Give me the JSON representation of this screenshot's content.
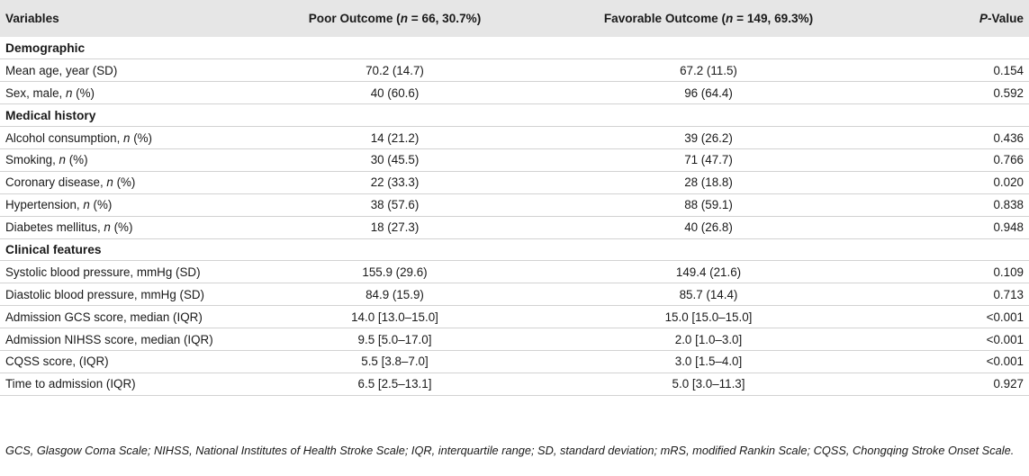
{
  "header": {
    "variables": "Variables",
    "poor_prefix": "Poor Outcome (",
    "poor_n": "n",
    "poor_suffix": " = 66, 30.7%)",
    "fav_prefix": "Favorable Outcome (",
    "fav_n": "n",
    "fav_suffix": " = 149, 69.3%)",
    "p_italic": "P",
    "p_rest": "-Value"
  },
  "rows": [
    {
      "type": "section",
      "label": "Demographic"
    },
    {
      "type": "data",
      "label": "Mean age, year (SD)",
      "poor": "70.2 (14.7)",
      "fav": "67.2 (11.5)",
      "p": "0.154"
    },
    {
      "type": "data",
      "label_pre": "Sex, male, ",
      "label_ital": "n",
      "label_post": " (%)",
      "poor": "40 (60.6)",
      "fav": "96 (64.4)",
      "p": "0.592"
    },
    {
      "type": "section",
      "label": "Medical history"
    },
    {
      "type": "data",
      "label_pre": "Alcohol consumption, ",
      "label_ital": "n",
      "label_post": " (%)",
      "poor": "14 (21.2)",
      "fav": "39 (26.2)",
      "p": "0.436"
    },
    {
      "type": "data",
      "label_pre": "Smoking, ",
      "label_ital": "n",
      "label_post": " (%)",
      "poor": "30 (45.5)",
      "fav": "71 (47.7)",
      "p": "0.766"
    },
    {
      "type": "data",
      "label_pre": "Coronary disease, ",
      "label_ital": "n",
      "label_post": " (%)",
      "poor": "22 (33.3)",
      "fav": "28 (18.8)",
      "p": "0.020"
    },
    {
      "type": "data",
      "label_pre": "Hypertension, ",
      "label_ital": "n",
      "label_post": " (%)",
      "poor": "38 (57.6)",
      "fav": "88 (59.1)",
      "p": "0.838"
    },
    {
      "type": "data",
      "label_pre": "Diabetes mellitus, ",
      "label_ital": "n",
      "label_post": " (%)",
      "poor": "18 (27.3)",
      "fav": "40 (26.8)",
      "p": "0.948"
    },
    {
      "type": "section",
      "label": "Clinical features"
    },
    {
      "type": "data",
      "label": "Systolic blood pressure, mmHg (SD)",
      "poor": "155.9 (29.6)",
      "fav": "149.4 (21.6)",
      "p": "0.109"
    },
    {
      "type": "data",
      "label": "Diastolic blood pressure, mmHg (SD)",
      "poor": "84.9 (15.9)",
      "fav": "85.7 (14.4)",
      "p": "0.713"
    },
    {
      "type": "data",
      "label": "Admission GCS score, median (IQR)",
      "poor": "14.0 [13.0–15.0]",
      "fav": "15.0 [15.0–15.0]",
      "p": "<0.001"
    },
    {
      "type": "data",
      "label": "Admission NIHSS score, median (IQR)",
      "poor": "9.5 [5.0–17.0]",
      "fav": "2.0 [1.0–3.0]",
      "p": "<0.001"
    },
    {
      "type": "data",
      "label": "CQSS score, (IQR)",
      "poor": "5.5 [3.8–7.0]",
      "fav": "3.0 [1.5–4.0]",
      "p": "<0.001"
    },
    {
      "type": "data",
      "label": "Time to admission (IQR)",
      "poor": "6.5 [2.5–13.1]",
      "fav": "5.0 [3.0–11.3]",
      "p": "0.927"
    }
  ],
  "footnote": "GCS, Glasgow Coma Scale; NIHSS, National Institutes of Health Stroke Scale; IQR, interquartile range; SD, standard deviation; mRS, modified Rankin Scale; CQSS, Chongqing Stroke Onset Scale."
}
